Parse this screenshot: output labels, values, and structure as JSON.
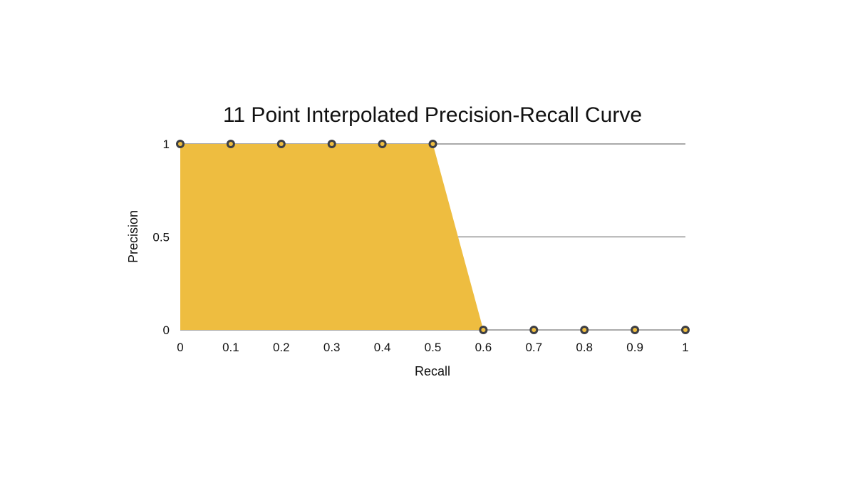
{
  "chart_data": {
    "type": "area",
    "title": "11 Point Interpolated Precision-Recall Curve",
    "xlabel": "Recall",
    "ylabel": "Precision",
    "x": [
      0,
      0.1,
      0.2,
      0.3,
      0.4,
      0.5,
      0.6,
      0.7,
      0.8,
      0.9,
      1
    ],
    "x_tick_labels": [
      "0",
      "0.1",
      "0.2",
      "0.3",
      "0.4",
      "0.5",
      "0.6",
      "0.7",
      "0.8",
      "0.9",
      "1"
    ],
    "y_ticks": [
      0,
      0.5,
      1
    ],
    "y_tick_labels": [
      "0",
      "0.5",
      "1"
    ],
    "xlim": [
      0,
      1
    ],
    "ylim": [
      0,
      1
    ],
    "grid": "horizontal",
    "legend": "none",
    "series": [
      {
        "values": [
          1,
          1,
          1,
          1,
          1,
          1,
          0,
          0,
          0,
          0,
          0
        ],
        "fill_color": "#EEBD40",
        "marker_fill": "#EEBD40",
        "marker_stroke": "#3D3F45"
      }
    ],
    "gridline_color": "#555555"
  }
}
